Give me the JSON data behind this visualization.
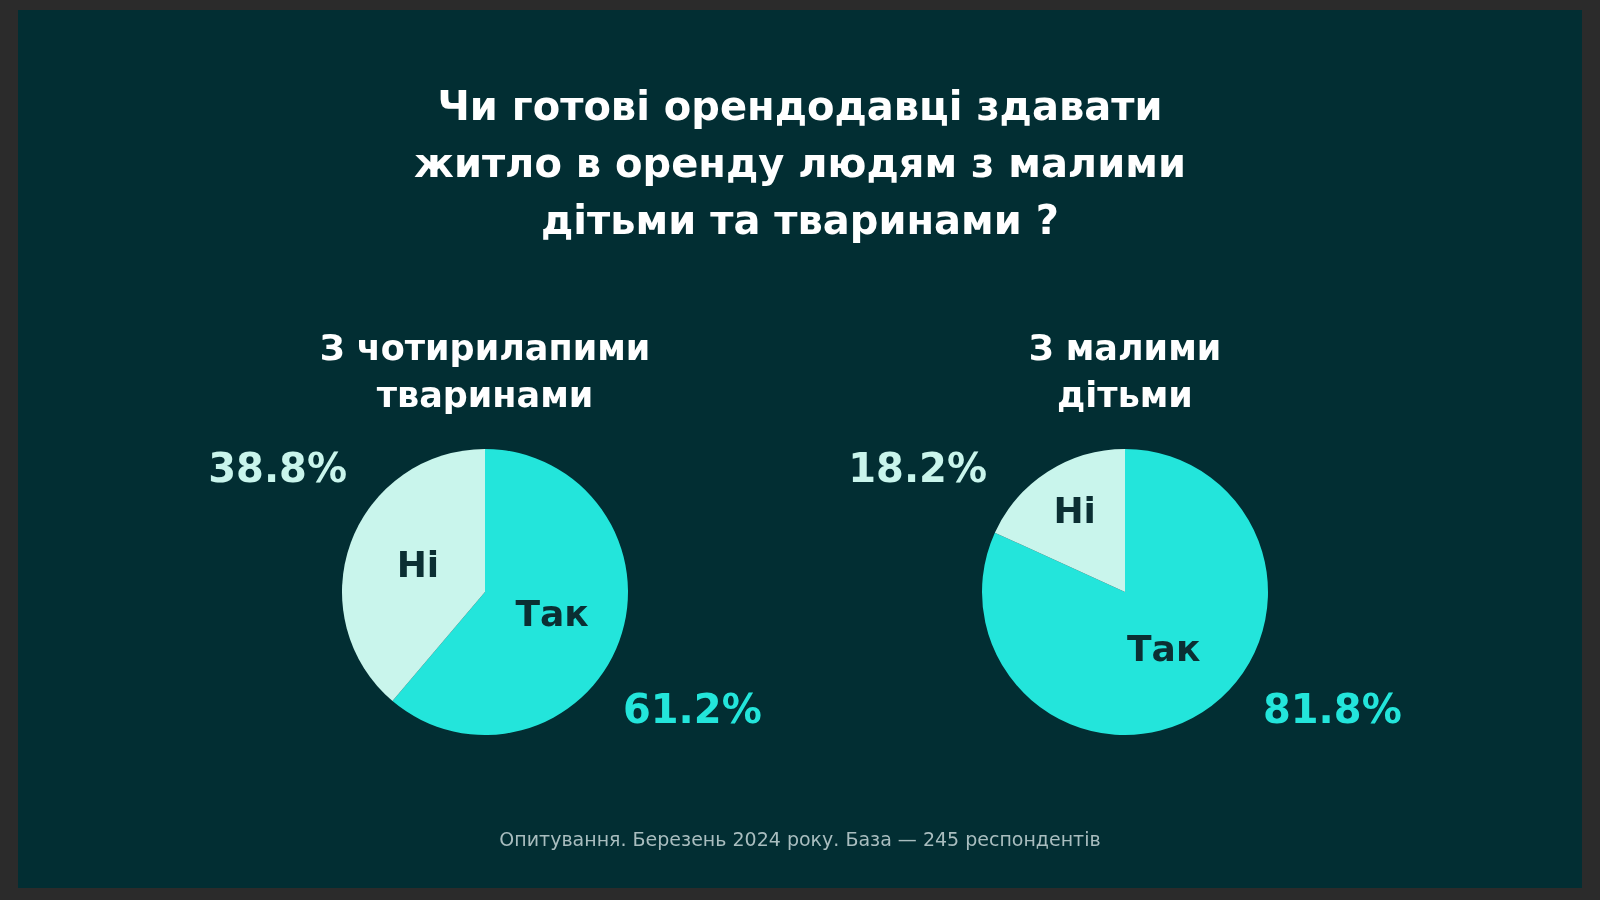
{
  "chart_data": [
    {
      "type": "pie",
      "title": "Чи готові орендодавці здавати житло в оренду людям з малими дітьми та тваринами ?",
      "subtitle": "З чотирилапими тваринами",
      "categories": [
        "Так",
        "Ні"
      ],
      "values": [
        61.2,
        38.8
      ],
      "colors": [
        "#23e5db",
        "#c9f5ec"
      ],
      "value_labels": [
        "61.2%",
        "38.8%"
      ],
      "legend": false,
      "annotations": [
        "Опитування. Березень 2024 року. База — 245 респондентів"
      ]
    },
    {
      "type": "pie",
      "title": "З малими дітьми",
      "categories": [
        "Так",
        "Ні"
      ],
      "values": [
        81.8,
        18.2
      ],
      "colors": [
        "#23e5db",
        "#c9f5ec"
      ],
      "value_labels": [
        "81.8%",
        "18.2%"
      ],
      "legend": false
    }
  ]
}
